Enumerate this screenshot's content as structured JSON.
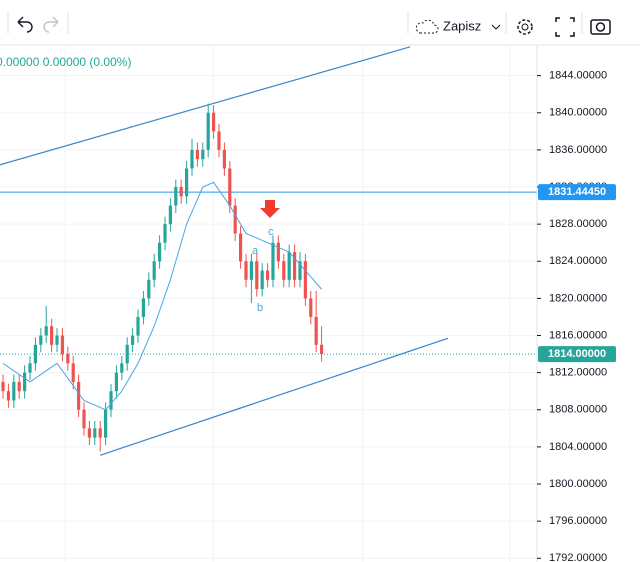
{
  "ui": {
    "save_label": "Zapisz"
  },
  "chart_data": {
    "type": "candlestick",
    "legend_text": "0.00000 0.00000 (0.00%)",
    "xlim": [
      -0.56,
      98.9
    ],
    "ylim": [
      1791.6,
      1847.3
    ],
    "yticks": [
      {
        "value": 1792,
        "label": "1792.00000"
      },
      {
        "value": 1796,
        "label": "1796.00000"
      },
      {
        "value": 1800,
        "label": "1800.00000"
      },
      {
        "value": 1804,
        "label": "1804.00000"
      },
      {
        "value": 1808,
        "label": "1808.00000"
      },
      {
        "value": 1812,
        "label": "1812.00000"
      },
      {
        "value": 1816,
        "label": "1816.00000"
      },
      {
        "value": 1820,
        "label": "1820.00000"
      },
      {
        "value": 1824,
        "label": "1824.00000"
      },
      {
        "value": 1828,
        "label": "1828.00000"
      },
      {
        "value": 1832,
        "label": "1832.00000"
      },
      {
        "value": 1836,
        "label": "1836.00000"
      },
      {
        "value": 1840,
        "label": "1840.00000"
      },
      {
        "value": 1844,
        "label": "1844.00000"
      }
    ],
    "grid": true,
    "up_color": "#26a69a",
    "down_color": "#ef5350",
    "open": [
      1811,
      1810,
      1809,
      1811,
      1810,
      1812,
      1813,
      1815,
      1816,
      1817,
      1815,
      1816,
      1814,
      1813,
      1811,
      1808,
      1806,
      1805,
      1806,
      1805,
      1808,
      1810,
      1812,
      1813,
      1815,
      1816,
      1818,
      1820,
      1822,
      1824,
      1826,
      1828,
      1830,
      1832,
      1831,
      1834,
      1836,
      1835,
      1836,
      1840,
      1838,
      1836,
      1834,
      1830,
      1827,
      1824,
      1822,
      1824,
      1821,
      1823,
      1822,
      1826,
      1824,
      1822,
      1825,
      1822,
      1824,
      1820,
      1818,
      1815
    ],
    "high": [
      1811.8,
      1810.8,
      1811.8,
      1811.8,
      1812.8,
      1813.8,
      1815.8,
      1816.8,
      1819.2,
      1817.8,
      1816.8,
      1816.8,
      1814.8,
      1813.8,
      1811.8,
      1808.8,
      1806.8,
      1806.8,
      1806.8,
      1808.8,
      1810.8,
      1812.8,
      1813.8,
      1815.8,
      1816.8,
      1818.8,
      1820.8,
      1822.8,
      1824.8,
      1826.8,
      1828.8,
      1830.8,
      1832.8,
      1832.8,
      1834.8,
      1837.2,
      1836.8,
      1836.8,
      1841,
      1840.8,
      1838.8,
      1836.8,
      1834.8,
      1830.8,
      1827.8,
      1824.8,
      1824.8,
      1824.8,
      1823.8,
      1823.8,
      1826.8,
      1826.8,
      1824.8,
      1825.8,
      1825.8,
      1825,
      1824.8,
      1820.8,
      1820.8,
      1817
    ],
    "low": [
      1809.2,
      1808.2,
      1808.2,
      1809.2,
      1809.2,
      1811.2,
      1812.2,
      1814.2,
      1815.2,
      1814.2,
      1814.2,
      1813.2,
      1812.2,
      1810.2,
      1807.2,
      1805.2,
      1804.2,
      1804.2,
      1803.5,
      1804.2,
      1807.2,
      1809.2,
      1811.2,
      1812.2,
      1814.2,
      1815.2,
      1817.2,
      1819.2,
      1821.2,
      1823.2,
      1825.2,
      1827.2,
      1829.2,
      1830.2,
      1830.2,
      1833.2,
      1834.2,
      1834.2,
      1835.2,
      1837.2,
      1835.2,
      1833.2,
      1829.2,
      1826.2,
      1823.2,
      1821.2,
      1819.5,
      1820.2,
      1820.2,
      1821.2,
      1821.2,
      1823.2,
      1821.2,
      1821.2,
      1821.2,
      1821.2,
      1819.2,
      1817.2,
      1814.2,
      1813.2
    ],
    "close": [
      1810,
      1809,
      1811,
      1810,
      1812,
      1813,
      1815,
      1816,
      1817,
      1815,
      1816,
      1814,
      1813,
      1811,
      1808,
      1806,
      1805,
      1806,
      1805,
      1808,
      1810,
      1812,
      1813,
      1815,
      1816,
      1818,
      1820,
      1822,
      1824,
      1826,
      1828,
      1830,
      1832,
      1831,
      1834,
      1836,
      1835,
      1836,
      1840,
      1838,
      1836,
      1834,
      1830,
      1827,
      1824,
      1822,
      1824,
      1821,
      1823,
      1822,
      1826,
      1824,
      1822,
      1825,
      1822,
      1824,
      1820,
      1818,
      1815,
      1814
    ],
    "moving_average": {
      "color": "#4ba3e3",
      "x": [
        0,
        5,
        10,
        15,
        19,
        22,
        25,
        28,
        31,
        34,
        37,
        39,
        42,
        45,
        49,
        53,
        56,
        59
      ],
      "values": [
        1813,
        1811,
        1813,
        1809,
        1808,
        1810,
        1813,
        1817,
        1822,
        1828,
        1832,
        1832.5,
        1830,
        1827,
        1826,
        1825,
        1823,
        1821
      ]
    },
    "trend_lines": [
      {
        "color": "#3d85c6",
        "x": [
          -0.56,
          75.4
        ],
        "values": [
          1834.4,
          1847.1
        ]
      },
      {
        "color": "#3d85c6",
        "x": [
          18.0,
          82.4
        ],
        "values": [
          1803.1,
          1815.7
        ]
      }
    ],
    "horizontal_line": {
      "color": "#2196f3",
      "value": 1831.4445,
      "label": "1831.44450"
    },
    "last_price": {
      "color": "#26a69a",
      "value": 1814,
      "label": "1814.00000"
    },
    "wave_labels": [
      "a",
      "b",
      "c"
    ]
  }
}
